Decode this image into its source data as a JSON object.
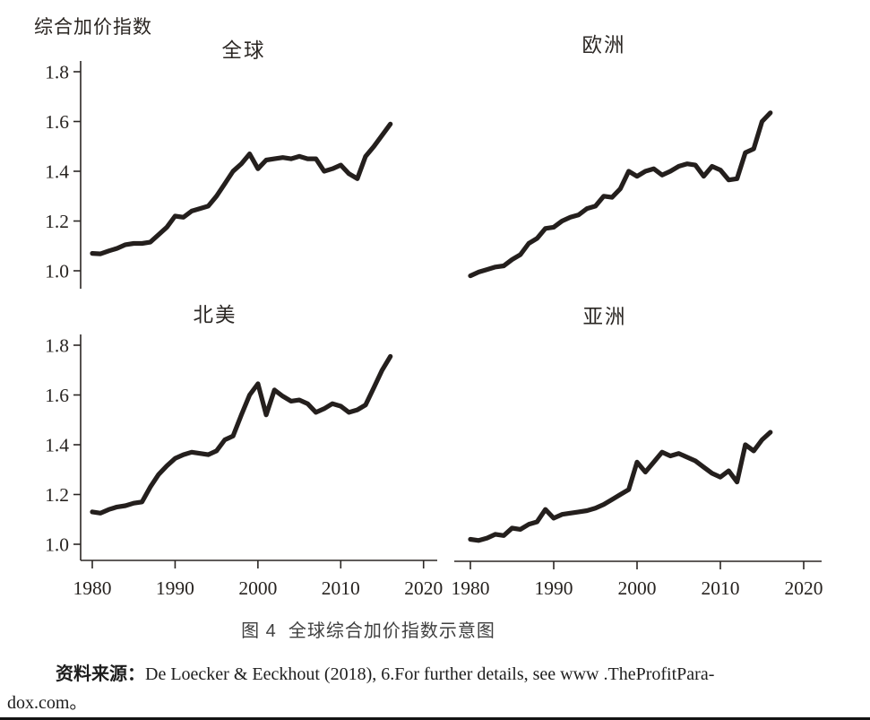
{
  "figure": {
    "unit_label": "综合加价指数",
    "caption": "图 4  全球综合加价指数示意图",
    "source_label": "资料来源：",
    "source_body": "De Loecker & Eeckhout (2018), 6.For further details, see www .TheProfitPara-",
    "source_line2": "dox.com。"
  },
  "chart_data": {
    "type": "line",
    "title": "全球综合加价指数示意图",
    "ylabel": "综合加价指数",
    "xlabel": "",
    "grid": false,
    "legend": "none",
    "line_color": "#241f1d",
    "axis_color": "#2b2724",
    "xlim": [
      1980,
      2020
    ],
    "ylim_displayed": [
      1.0,
      1.8
    ],
    "x_ticks": [
      1980,
      1990,
      2000,
      2010,
      2020
    ],
    "y_ticks": [
      1.8,
      1.6,
      1.4,
      1.2,
      1.0
    ],
    "x": [
      1980,
      1981,
      1982,
      1983,
      1984,
      1985,
      1986,
      1987,
      1988,
      1989,
      1990,
      1991,
      1992,
      1993,
      1994,
      1995,
      1996,
      1997,
      1998,
      1999,
      2000,
      2001,
      2002,
      2003,
      2004,
      2005,
      2006,
      2007,
      2008,
      2009,
      2010,
      2011,
      2012,
      2013,
      2014,
      2015,
      2016
    ],
    "series": [
      {
        "key": "global",
        "name": "全球",
        "values": [
          1.07,
          1.068,
          1.08,
          1.09,
          1.105,
          1.11,
          1.11,
          1.115,
          1.145,
          1.175,
          1.22,
          1.215,
          1.24,
          1.25,
          1.26,
          1.3,
          1.35,
          1.4,
          1.43,
          1.47,
          1.41,
          1.445,
          1.45,
          1.455,
          1.45,
          1.46,
          1.45,
          1.45,
          1.4,
          1.41,
          1.425,
          1.39,
          1.37,
          1.46,
          1.5,
          1.545,
          1.59
        ]
      },
      {
        "key": "europe",
        "name": "欧洲",
        "values": [
          0.98,
          0.995,
          1.005,
          1.015,
          1.02,
          1.045,
          1.065,
          1.11,
          1.13,
          1.17,
          1.175,
          1.2,
          1.215,
          1.225,
          1.25,
          1.26,
          1.3,
          1.295,
          1.33,
          1.4,
          1.38,
          1.4,
          1.41,
          1.385,
          1.4,
          1.42,
          1.43,
          1.425,
          1.38,
          1.42,
          1.405,
          1.365,
          1.37,
          1.475,
          1.49,
          1.6,
          1.635
        ]
      },
      {
        "key": "north_america",
        "name": "北美",
        "values": [
          1.13,
          1.125,
          1.14,
          1.15,
          1.155,
          1.165,
          1.17,
          1.23,
          1.28,
          1.315,
          1.345,
          1.36,
          1.37,
          1.365,
          1.36,
          1.375,
          1.42,
          1.435,
          1.52,
          1.6,
          1.645,
          1.52,
          1.62,
          1.595,
          1.575,
          1.58,
          1.565,
          1.53,
          1.545,
          1.565,
          1.555,
          1.53,
          1.54,
          1.56,
          1.63,
          1.7,
          1.755
        ]
      },
      {
        "key": "asia",
        "name": "亚洲",
        "values": [
          1.02,
          1.015,
          1.025,
          1.04,
          1.035,
          1.065,
          1.06,
          1.08,
          1.09,
          1.14,
          1.105,
          1.12,
          1.125,
          1.13,
          1.135,
          1.145,
          1.16,
          1.18,
          1.2,
          1.22,
          1.33,
          1.29,
          1.33,
          1.37,
          1.355,
          1.365,
          1.35,
          1.335,
          1.31,
          1.285,
          1.27,
          1.295,
          1.25,
          1.4,
          1.375,
          1.42,
          1.45
        ]
      }
    ]
  }
}
